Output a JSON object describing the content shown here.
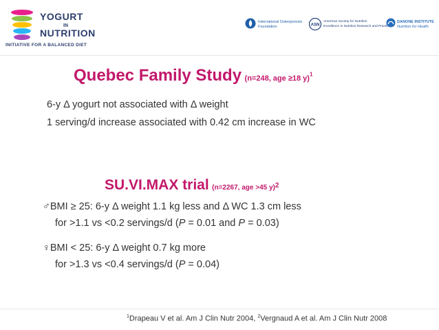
{
  "logo": {
    "line1": "YOGURT",
    "in": "IN",
    "line2": "NUTRITION",
    "tagline": "INITIATIVE FOR A BALANCED DIET",
    "colors": [
      "#e91e8c",
      "#8bc34a",
      "#ffc107",
      "#29b6f6",
      "#ab47bc"
    ]
  },
  "partners": [
    {
      "name": "International Osteoporosis Foundation",
      "icon": "iof-icon",
      "line1": "International Osteoporosis",
      "line2": "Foundation"
    },
    {
      "name": "American Society for Nutrition",
      "icon": "asn-icon",
      "line1": "American Society for Nutrition",
      "line2": "Excellence in Nutrition Research and Practice"
    },
    {
      "name": "Danone Institute",
      "icon": "danone-icon",
      "line1": "DANONE INSTITUTE",
      "line2": "Nutrition for Health"
    }
  ],
  "section1": {
    "title": "Quebec Family Study",
    "subtitle": "(n=248, age ≥18 y)",
    "ref": "1",
    "lines": [
      "6-y Δ yogurt not associated with Δ weight",
      "1 serving/d increase associated with 0.42 cm increase in WC"
    ]
  },
  "section2": {
    "title": "SU.VI.MAX trial",
    "subtitle": "(n=2267, age >45 y)",
    "ref": "2",
    "male": {
      "symbol": "♂",
      "line1": "BMI ≥ 25:  6-y Δ weight 1.1 kg less and Δ WC 1.3 cm less",
      "line2a": "for >1.1 vs <0.2 servings/d (",
      "p": "P",
      "line2b": " = 0.01 and ",
      "line2c": " = 0.03)"
    },
    "female": {
      "symbol": "♀",
      "line1": "BMI < 25:  6-y Δ weight 0.7 kg more",
      "line2a": "for >1.3 vs <0.4 servings/d (",
      "p": "P",
      "line2b": " = 0.04)"
    }
  },
  "footer": {
    "ref1": "1",
    "cite1": "Drapeau V et al. Am J Clin Nutr 2004,  ",
    "ref2": "2",
    "cite2": "Vergnaud A et al. Am J Clin Nutr 2008"
  }
}
